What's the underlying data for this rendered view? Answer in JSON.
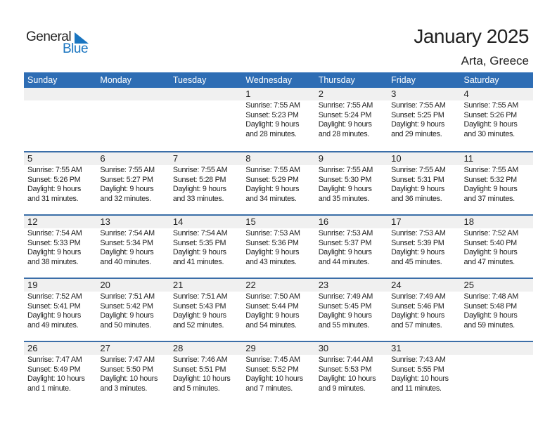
{
  "logo": {
    "text1": "General",
    "text2": "Blue"
  },
  "title": "January 2025",
  "location": "Arta, Greece",
  "colors": {
    "header": "#2e6db4",
    "logo_blue": "#1a75c0"
  },
  "weekdays": [
    "Sunday",
    "Monday",
    "Tuesday",
    "Wednesday",
    "Thursday",
    "Friday",
    "Saturday"
  ],
  "weeks": [
    [
      null,
      null,
      null,
      {
        "day": "1",
        "sunrise": "Sunrise: 7:55 AM",
        "sunset": "Sunset: 5:23 PM",
        "daylight1": "Daylight: 9 hours",
        "daylight2": "and 28 minutes."
      },
      {
        "day": "2",
        "sunrise": "Sunrise: 7:55 AM",
        "sunset": "Sunset: 5:24 PM",
        "daylight1": "Daylight: 9 hours",
        "daylight2": "and 28 minutes."
      },
      {
        "day": "3",
        "sunrise": "Sunrise: 7:55 AM",
        "sunset": "Sunset: 5:25 PM",
        "daylight1": "Daylight: 9 hours",
        "daylight2": "and 29 minutes."
      },
      {
        "day": "4",
        "sunrise": "Sunrise: 7:55 AM",
        "sunset": "Sunset: 5:26 PM",
        "daylight1": "Daylight: 9 hours",
        "daylight2": "and 30 minutes."
      }
    ],
    [
      {
        "day": "5",
        "sunrise": "Sunrise: 7:55 AM",
        "sunset": "Sunset: 5:26 PM",
        "daylight1": "Daylight: 9 hours",
        "daylight2": "and 31 minutes."
      },
      {
        "day": "6",
        "sunrise": "Sunrise: 7:55 AM",
        "sunset": "Sunset: 5:27 PM",
        "daylight1": "Daylight: 9 hours",
        "daylight2": "and 32 minutes."
      },
      {
        "day": "7",
        "sunrise": "Sunrise: 7:55 AM",
        "sunset": "Sunset: 5:28 PM",
        "daylight1": "Daylight: 9 hours",
        "daylight2": "and 33 minutes."
      },
      {
        "day": "8",
        "sunrise": "Sunrise: 7:55 AM",
        "sunset": "Sunset: 5:29 PM",
        "daylight1": "Daylight: 9 hours",
        "daylight2": "and 34 minutes."
      },
      {
        "day": "9",
        "sunrise": "Sunrise: 7:55 AM",
        "sunset": "Sunset: 5:30 PM",
        "daylight1": "Daylight: 9 hours",
        "daylight2": "and 35 minutes."
      },
      {
        "day": "10",
        "sunrise": "Sunrise: 7:55 AM",
        "sunset": "Sunset: 5:31 PM",
        "daylight1": "Daylight: 9 hours",
        "daylight2": "and 36 minutes."
      },
      {
        "day": "11",
        "sunrise": "Sunrise: 7:55 AM",
        "sunset": "Sunset: 5:32 PM",
        "daylight1": "Daylight: 9 hours",
        "daylight2": "and 37 minutes."
      }
    ],
    [
      {
        "day": "12",
        "sunrise": "Sunrise: 7:54 AM",
        "sunset": "Sunset: 5:33 PM",
        "daylight1": "Daylight: 9 hours",
        "daylight2": "and 38 minutes."
      },
      {
        "day": "13",
        "sunrise": "Sunrise: 7:54 AM",
        "sunset": "Sunset: 5:34 PM",
        "daylight1": "Daylight: 9 hours",
        "daylight2": "and 40 minutes."
      },
      {
        "day": "14",
        "sunrise": "Sunrise: 7:54 AM",
        "sunset": "Sunset: 5:35 PM",
        "daylight1": "Daylight: 9 hours",
        "daylight2": "and 41 minutes."
      },
      {
        "day": "15",
        "sunrise": "Sunrise: 7:53 AM",
        "sunset": "Sunset: 5:36 PM",
        "daylight1": "Daylight: 9 hours",
        "daylight2": "and 43 minutes."
      },
      {
        "day": "16",
        "sunrise": "Sunrise: 7:53 AM",
        "sunset": "Sunset: 5:37 PM",
        "daylight1": "Daylight: 9 hours",
        "daylight2": "and 44 minutes."
      },
      {
        "day": "17",
        "sunrise": "Sunrise: 7:53 AM",
        "sunset": "Sunset: 5:39 PM",
        "daylight1": "Daylight: 9 hours",
        "daylight2": "and 45 minutes."
      },
      {
        "day": "18",
        "sunrise": "Sunrise: 7:52 AM",
        "sunset": "Sunset: 5:40 PM",
        "daylight1": "Daylight: 9 hours",
        "daylight2": "and 47 minutes."
      }
    ],
    [
      {
        "day": "19",
        "sunrise": "Sunrise: 7:52 AM",
        "sunset": "Sunset: 5:41 PM",
        "daylight1": "Daylight: 9 hours",
        "daylight2": "and 49 minutes."
      },
      {
        "day": "20",
        "sunrise": "Sunrise: 7:51 AM",
        "sunset": "Sunset: 5:42 PM",
        "daylight1": "Daylight: 9 hours",
        "daylight2": "and 50 minutes."
      },
      {
        "day": "21",
        "sunrise": "Sunrise: 7:51 AM",
        "sunset": "Sunset: 5:43 PM",
        "daylight1": "Daylight: 9 hours",
        "daylight2": "and 52 minutes."
      },
      {
        "day": "22",
        "sunrise": "Sunrise: 7:50 AM",
        "sunset": "Sunset: 5:44 PM",
        "daylight1": "Daylight: 9 hours",
        "daylight2": "and 54 minutes."
      },
      {
        "day": "23",
        "sunrise": "Sunrise: 7:49 AM",
        "sunset": "Sunset: 5:45 PM",
        "daylight1": "Daylight: 9 hours",
        "daylight2": "and 55 minutes."
      },
      {
        "day": "24",
        "sunrise": "Sunrise: 7:49 AM",
        "sunset": "Sunset: 5:46 PM",
        "daylight1": "Daylight: 9 hours",
        "daylight2": "and 57 minutes."
      },
      {
        "day": "25",
        "sunrise": "Sunrise: 7:48 AM",
        "sunset": "Sunset: 5:48 PM",
        "daylight1": "Daylight: 9 hours",
        "daylight2": "and 59 minutes."
      }
    ],
    [
      {
        "day": "26",
        "sunrise": "Sunrise: 7:47 AM",
        "sunset": "Sunset: 5:49 PM",
        "daylight1": "Daylight: 10 hours",
        "daylight2": "and 1 minute."
      },
      {
        "day": "27",
        "sunrise": "Sunrise: 7:47 AM",
        "sunset": "Sunset: 5:50 PM",
        "daylight1": "Daylight: 10 hours",
        "daylight2": "and 3 minutes."
      },
      {
        "day": "28",
        "sunrise": "Sunrise: 7:46 AM",
        "sunset": "Sunset: 5:51 PM",
        "daylight1": "Daylight: 10 hours",
        "daylight2": "and 5 minutes."
      },
      {
        "day": "29",
        "sunrise": "Sunrise: 7:45 AM",
        "sunset": "Sunset: 5:52 PM",
        "daylight1": "Daylight: 10 hours",
        "daylight2": "and 7 minutes."
      },
      {
        "day": "30",
        "sunrise": "Sunrise: 7:44 AM",
        "sunset": "Sunset: 5:53 PM",
        "daylight1": "Daylight: 10 hours",
        "daylight2": "and 9 minutes."
      },
      {
        "day": "31",
        "sunrise": "Sunrise: 7:43 AM",
        "sunset": "Sunset: 5:55 PM",
        "daylight1": "Daylight: 10 hours",
        "daylight2": "and 11 minutes."
      },
      null
    ]
  ]
}
